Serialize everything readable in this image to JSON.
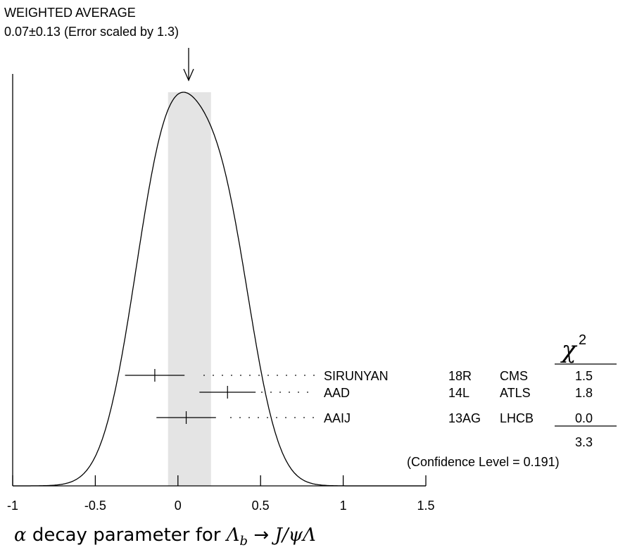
{
  "chart_data": {
    "type": "ideogram",
    "title_line1": "WEIGHTED AVERAGE",
    "title_line2": "0.07±0.13 (Error scaled by 1.3)",
    "average": 0.07,
    "average_error": 0.13,
    "xlim": [
      -1,
      1.5
    ],
    "xticks": [
      -1,
      -0.5,
      0,
      0.5,
      1,
      1.5
    ],
    "xtick_labels": [
      "-1",
      "-0.5",
      "0",
      "0.5",
      "1",
      "1.5"
    ],
    "xlabel": {
      "alpha": "α",
      "text": " decay parameter for ",
      "lambda_b": "Λ",
      "sub_b": "b",
      "arrow": " → ",
      "jpsi": "J/ψ",
      "lambda": "Λ"
    },
    "chi2_header": "χ",
    "chi2_header_sup": "2",
    "measurements": [
      {
        "author": "SIRUNYAN",
        "ref": "18R",
        "experiment": "CMS",
        "value": -0.14,
        "error_low": 0.18,
        "error_high": 0.18,
        "chi2": "1.5"
      },
      {
        "author": "AAD",
        "ref": "14L",
        "experiment": "ATLS",
        "value": 0.3,
        "error_low": 0.17,
        "error_high": 0.17,
        "chi2": "1.8"
      },
      {
        "author": "AAIJ",
        "ref": "13AG",
        "experiment": "LHCB",
        "value": 0.05,
        "error_low": 0.18,
        "error_high": 0.18,
        "chi2": "0.0"
      }
    ],
    "chi2_total": "3.3",
    "confidence_level": "(Confidence Level = 0.191)",
    "band_color": "#e4e4e4"
  }
}
